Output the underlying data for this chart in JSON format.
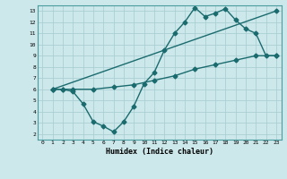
{
  "background_color": "#cde8eb",
  "grid_color": "#aacfd4",
  "line_color": "#1a6b6e",
  "marker_style": "D",
  "marker_size": 2.5,
  "line_width": 1.0,
  "xlabel": "Humidex (Indice chaleur)",
  "xlim": [
    -0.5,
    23.5
  ],
  "ylim": [
    1.5,
    13.5
  ],
  "xticks": [
    0,
    1,
    2,
    3,
    4,
    5,
    6,
    7,
    8,
    9,
    10,
    11,
    12,
    13,
    14,
    15,
    16,
    17,
    18,
    19,
    20,
    21,
    22,
    23
  ],
  "yticks": [
    2,
    3,
    4,
    5,
    6,
    7,
    8,
    9,
    10,
    11,
    12,
    13
  ],
  "line1_x": [
    1,
    2,
    3,
    4,
    5,
    6,
    7,
    8,
    9,
    10,
    11,
    12,
    13,
    14,
    15,
    16,
    17,
    18,
    19,
    20,
    21,
    22,
    23
  ],
  "line1_y": [
    6.0,
    6.0,
    5.8,
    4.7,
    3.1,
    2.7,
    2.2,
    3.1,
    4.5,
    6.5,
    7.5,
    9.5,
    11.0,
    12.0,
    13.3,
    12.5,
    12.8,
    13.2,
    12.2,
    11.4,
    11.0,
    9.0,
    9.0
  ],
  "line2_x": [
    1,
    2,
    3,
    5,
    7,
    9,
    11,
    13,
    15,
    17,
    19,
    21,
    23
  ],
  "line2_y": [
    6.0,
    6.0,
    6.0,
    6.0,
    6.2,
    6.4,
    6.8,
    7.2,
    7.8,
    8.2,
    8.6,
    9.0,
    9.0
  ],
  "line3_x": [
    1,
    23
  ],
  "line3_y": [
    6.0,
    13.0
  ]
}
